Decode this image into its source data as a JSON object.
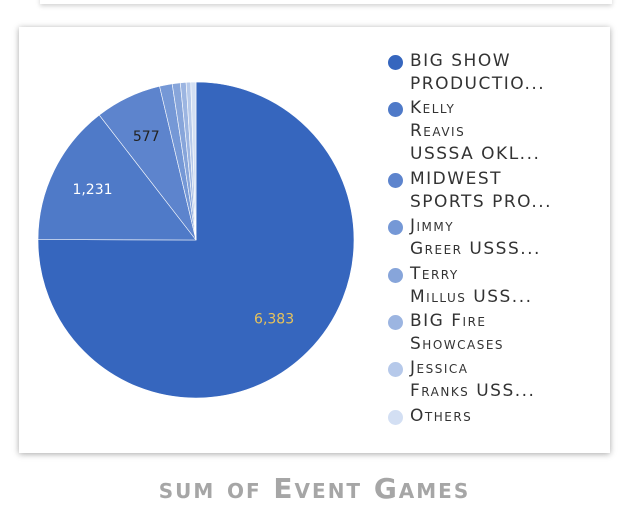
{
  "chart_data": {
    "type": "pie",
    "title": "sum of Event Games",
    "slices": [
      {
        "label": "BIG SHOW PRODUCTIO...",
        "value": 6383,
        "display": "6,383",
        "color": "#3666be",
        "label_color": "#e8c35a"
      },
      {
        "label": "Kelly Reavis USSSA OKL...",
        "value": 1231,
        "display": "1,231",
        "color": "#4f7ac8",
        "label_color": "#ffffff"
      },
      {
        "label": "MIDWEST SPORTS PRO...",
        "value": 577,
        "display": "577",
        "color": "#5d84cd",
        "label_color": "#222222"
      },
      {
        "label": "Jimmy Greer USSS...",
        "value": 110,
        "display": "",
        "color": "#7598d6",
        "label_color": "#222222"
      },
      {
        "label": "Terry Millus USS...",
        "value": 70,
        "display": "",
        "color": "#87a5da",
        "label_color": "#222222"
      },
      {
        "label": "BIG Fire Showcases",
        "value": 50,
        "display": "",
        "color": "#9cb5e1",
        "label_color": "#222222"
      },
      {
        "label": "Jessica Franks USS...",
        "value": 40,
        "display": "",
        "color": "#b6c9ea",
        "label_color": "#222222"
      },
      {
        "label": "Others",
        "value": 45,
        "display": "",
        "color": "#d3dff3",
        "label_color": "#222222"
      }
    ],
    "legend": {
      "position": "right",
      "items": [
        {
          "label": "BIG SHOW\nPRODUCTIO...",
          "color": "#3666be"
        },
        {
          "label": "Kelly\nReavis\nUSSSA OKL...",
          "color": "#4f7ac8"
        },
        {
          "label": "MIDWEST\nSPORTS PRO...",
          "color": "#5d84cd"
        },
        {
          "label": "Jimmy\nGreer USSS...",
          "color": "#7598d6"
        },
        {
          "label": "Terry\nMillus USS...",
          "color": "#87a5da"
        },
        {
          "label": "BIG Fire\nShowcases",
          "color": "#9cb5e1"
        },
        {
          "label": "Jessica\nFranks USS...",
          "color": "#b6c9ea"
        },
        {
          "label": "Others",
          "color": "#d3dff3"
        }
      ]
    }
  }
}
